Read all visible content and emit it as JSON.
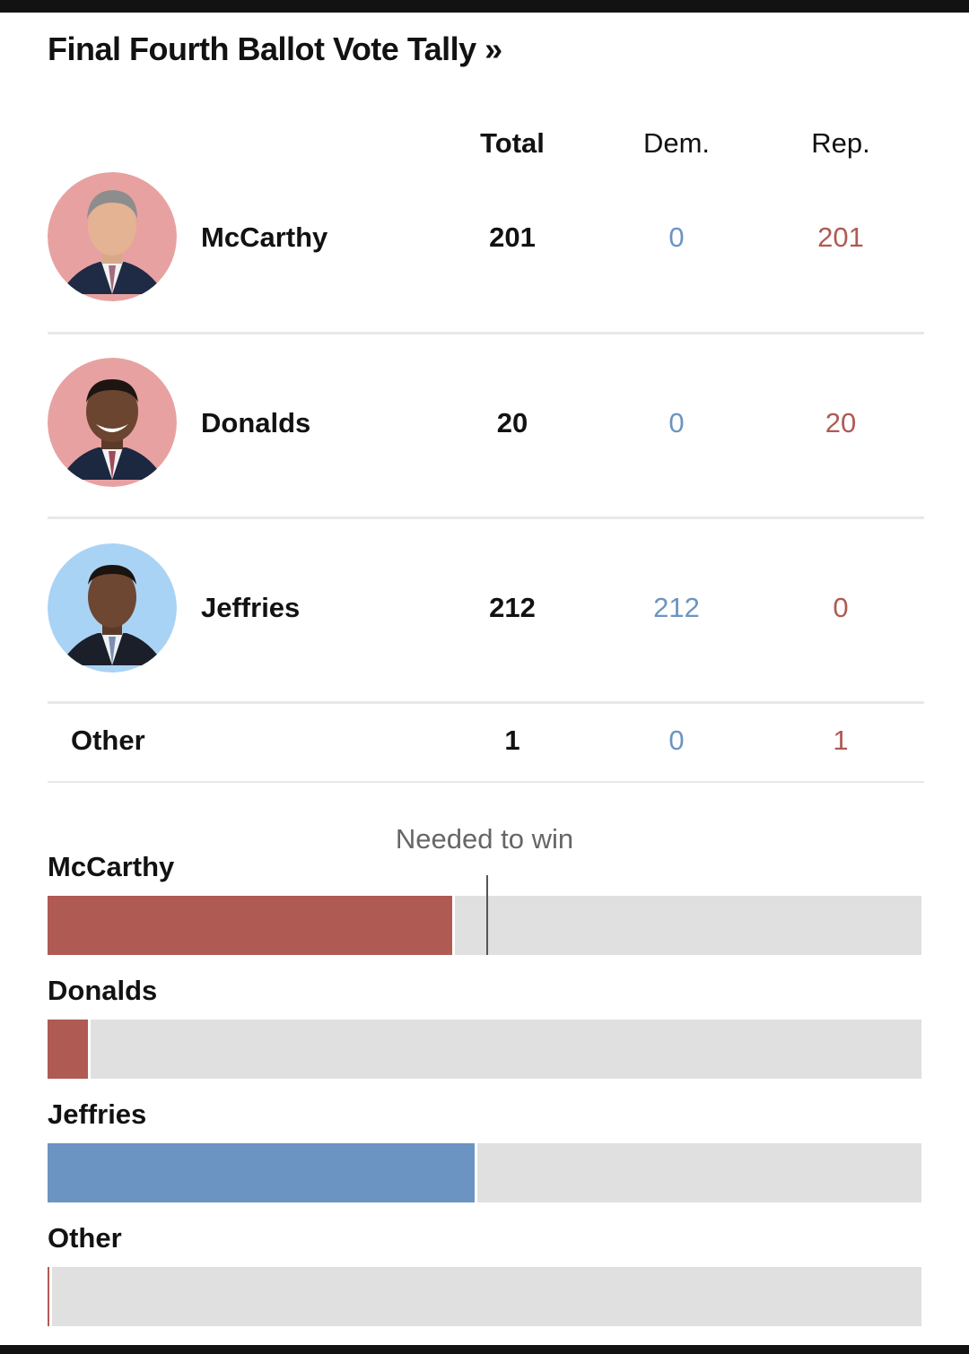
{
  "title": "Final Fourth Ballot Vote Tally »",
  "colors": {
    "republican": "#b05a54",
    "democrat": "#6b94c2",
    "track": "#e0e0e0",
    "dem_text": "#6b94c2",
    "rep_text": "#b05a54"
  },
  "table": {
    "headers": {
      "total": "Total",
      "dem": "Dem.",
      "rep": "Rep."
    },
    "rows": [
      {
        "name": "McCarthy",
        "total": "201",
        "dem": "0",
        "rep": "201",
        "party": "republican"
      },
      {
        "name": "Donalds",
        "total": "20",
        "dem": "0",
        "rep": "20",
        "party": "republican"
      },
      {
        "name": "Jeffries",
        "total": "212",
        "dem": "212",
        "rep": "0",
        "party": "democrat"
      },
      {
        "name": "Other",
        "total": "1",
        "dem": "0",
        "rep": "1",
        "party": "republican"
      }
    ]
  },
  "chart_data": {
    "type": "bar",
    "orientation": "horizontal",
    "title": "Final Fourth Ballot Vote Tally",
    "categories": [
      "McCarthy",
      "Donalds",
      "Jeffries",
      "Other"
    ],
    "values": [
      201,
      20,
      212,
      1
    ],
    "series_colors": [
      "#b05a54",
      "#b05a54",
      "#6b94c2",
      "#b05a54"
    ],
    "xlim": [
      0,
      434
    ],
    "threshold": {
      "label": "Needed to win",
      "value": 218
    }
  }
}
